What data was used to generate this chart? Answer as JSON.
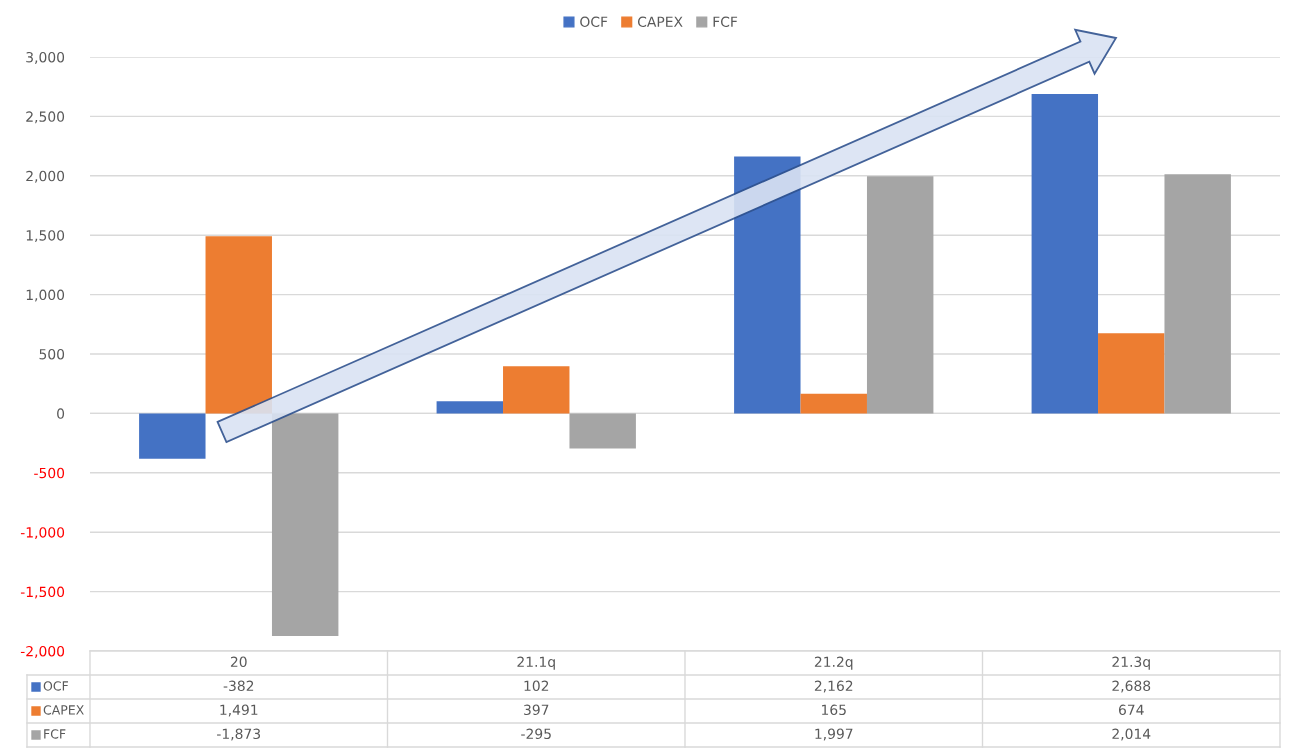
{
  "chart_data": {
    "type": "bar",
    "categories": [
      "20",
      "21.1q",
      "21.2q",
      "21.3q"
    ],
    "series": [
      {
        "name": "OCF",
        "color": "#4472c4",
        "values": [
          -382,
          102,
          2162,
          2688
        ],
        "value_labels": [
          "-382",
          "102",
          "2,162",
          "2,688"
        ]
      },
      {
        "name": "CAPEX",
        "color": "#ed7d31",
        "values": [
          1491,
          397,
          165,
          674
        ],
        "value_labels": [
          "1,491",
          "397",
          "165",
          "674"
        ]
      },
      {
        "name": "FCF",
        "color": "#a5a5a5",
        "values": [
          -1873,
          -295,
          1997,
          2014
        ],
        "value_labels": [
          "-1,873",
          "-295",
          "1,997",
          "2,014"
        ]
      }
    ],
    "ylim": [
      -2000,
      3000
    ],
    "yticks": [
      {
        "value": -2000,
        "label": "-2,000"
      },
      {
        "value": -1500,
        "label": "-1,500"
      },
      {
        "value": -1000,
        "label": "-1,000"
      },
      {
        "value": -500,
        "label": "-500"
      },
      0,
      {
        "value": 500,
        "label": "500"
      },
      {
        "value": 1000,
        "label": "1,000"
      },
      {
        "value": 1500,
        "label": "1,500"
      },
      {
        "value": 2000,
        "label": "2,000"
      },
      {
        "value": 2500,
        "label": "2,500"
      },
      {
        "value": 3000,
        "label": "3,000"
      }
    ],
    "grid": "y",
    "legend": "top"
  }
}
